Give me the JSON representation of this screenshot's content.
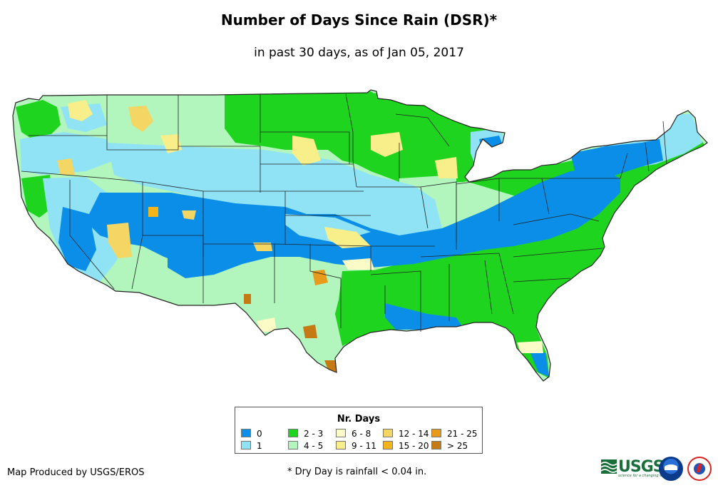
{
  "title": "Number of Days Since Rain (DSR)*",
  "subtitle": "in past 30 days, as of Jan 05, 2017",
  "legend": {
    "title": "Nr. Days",
    "items": [
      {
        "label": "0",
        "color": "#0a8ee8"
      },
      {
        "label": "1",
        "color": "#8fe3f5"
      },
      {
        "label": "2 - 3",
        "color": "#1ed41e"
      },
      {
        "label": "4 - 5",
        "color": "#b2f5bd"
      },
      {
        "label": "6 - 8",
        "color": "#fbfbc8"
      },
      {
        "label": "9 - 11",
        "color": "#f8ef8a"
      },
      {
        "label": "12 - 14",
        "color": "#f3d664"
      },
      {
        "label": "15 - 20",
        "color": "#f5b518"
      },
      {
        "label": "21 - 25",
        "color": "#e89a1a"
      },
      {
        "label": "> 25",
        "color": "#c57a14"
      }
    ]
  },
  "footer": {
    "producer": "Map Produced by USGS/EROS",
    "note": "* Dry Day is rainfall < 0.04 in."
  },
  "logos": {
    "usgs_text": "USGS",
    "usgs_tagline": "science for a changing world",
    "noaa": "noaa-logo",
    "nws": "nws-logo"
  }
}
